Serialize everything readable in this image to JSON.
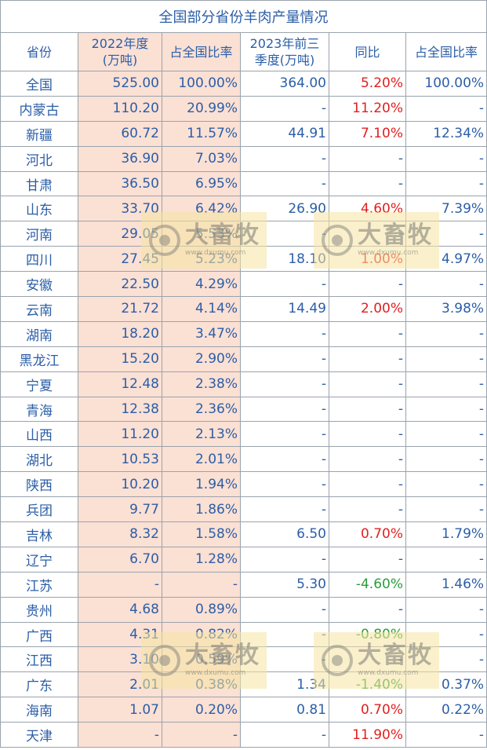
{
  "title": "全国部分省份羊肉产量情况",
  "headers": [
    "省份",
    "2022年度\n(万吨)",
    "占全国比率",
    "2023年前三\n季度(万吨)",
    "同比",
    "占全国比率"
  ],
  "rows": [
    [
      "全国",
      "525.00",
      "100.00%",
      "364.00",
      "5.20%",
      "100.00%"
    ],
    [
      "内蒙古",
      "110.20",
      "20.99%",
      "-",
      "11.20%",
      "-"
    ],
    [
      "新疆",
      "60.72",
      "11.57%",
      "44.91",
      "7.10%",
      "12.34%"
    ],
    [
      "河北",
      "36.90",
      "7.03%",
      "-",
      "-",
      "-"
    ],
    [
      "甘肃",
      "36.50",
      "6.95%",
      "-",
      "-",
      "-"
    ],
    [
      "山东",
      "33.70",
      "6.42%",
      "26.90",
      "4.60%",
      "7.39%"
    ],
    [
      "河南",
      "29.05",
      "5.53%",
      "-",
      "-",
      "-"
    ],
    [
      "四川",
      "27.45",
      "5.23%",
      "18.10",
      "1.00%",
      "4.97%"
    ],
    [
      "安徽",
      "22.50",
      "4.29%",
      "-",
      "-",
      "-"
    ],
    [
      "云南",
      "21.72",
      "4.14%",
      "14.49",
      "2.00%",
      "3.98%"
    ],
    [
      "湖南",
      "18.20",
      "3.47%",
      "-",
      "-",
      "-"
    ],
    [
      "黑龙江",
      "15.20",
      "2.90%",
      "-",
      "-",
      "-"
    ],
    [
      "宁夏",
      "12.48",
      "2.38%",
      "-",
      "-",
      "-"
    ],
    [
      "青海",
      "12.38",
      "2.36%",
      "-",
      "-",
      "-"
    ],
    [
      "山西",
      "11.20",
      "2.13%",
      "-",
      "-",
      "-"
    ],
    [
      "湖北",
      "10.53",
      "2.01%",
      "-",
      "-",
      "-"
    ],
    [
      "陕西",
      "10.20",
      "1.94%",
      "-",
      "-",
      "-"
    ],
    [
      "兵团",
      "9.77",
      "1.86%",
      "-",
      "-",
      "-"
    ],
    [
      "吉林",
      "8.32",
      "1.58%",
      "6.50",
      "0.70%",
      "1.79%"
    ],
    [
      "辽宁",
      "6.70",
      "1.28%",
      "-",
      "-",
      "-"
    ],
    [
      "江苏",
      "-",
      "-",
      "5.30",
      "-4.60%",
      "1.46%"
    ],
    [
      "贵州",
      "4.68",
      "0.89%",
      "-",
      "-",
      "-"
    ],
    [
      "广西",
      "4.31",
      "0.82%",
      "-",
      "-0.80%",
      "-"
    ],
    [
      "江西",
      "3.10",
      "0.59%",
      "-",
      "-",
      "-"
    ],
    [
      "广东",
      "2.01",
      "0.38%",
      "1.34",
      "-1.40%",
      "0.37%"
    ],
    [
      "海南",
      "1.07",
      "0.20%",
      "0.81",
      "0.70%",
      "0.22%"
    ],
    [
      "天津",
      "-",
      "-",
      "-",
      "11.90%",
      "-"
    ]
  ],
  "watermark": {
    "brand": "大畜牧",
    "url": "www.dxumu.com"
  },
  "colors": {
    "text": "#2b5ea7",
    "positive": "#e02020",
    "negative": "#2a9d3a",
    "highlight": "#fbe0d4"
  }
}
